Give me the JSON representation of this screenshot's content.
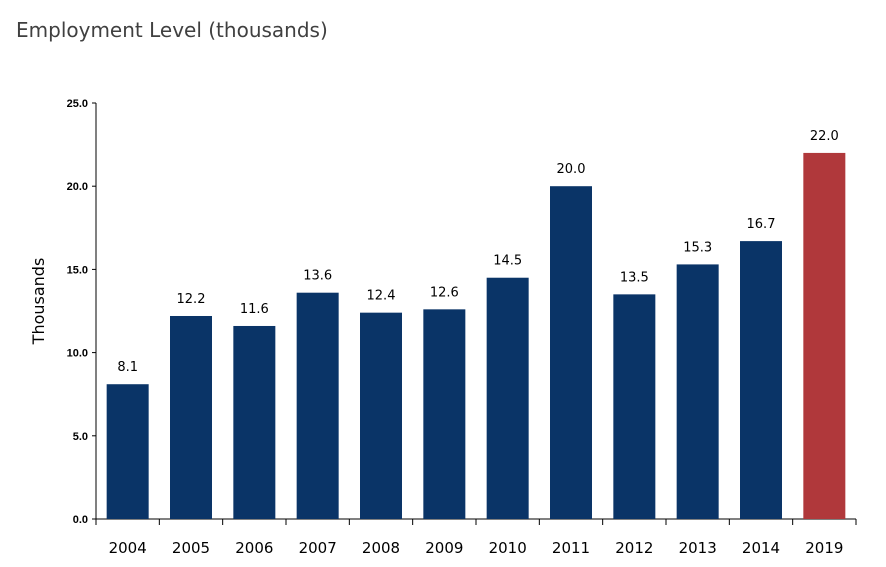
{
  "chart_data": {
    "type": "bar",
    "title": "Employment Level (thousands)",
    "ylabel": "Thousands",
    "xlabel": "",
    "categories": [
      "2004",
      "2005",
      "2006",
      "2007",
      "2008",
      "2009",
      "2010",
      "2011",
      "2012",
      "2013",
      "2014",
      "2019"
    ],
    "values": [
      8.1,
      12.2,
      11.6,
      13.6,
      12.4,
      12.6,
      14.5,
      20.0,
      13.5,
      15.3,
      16.7,
      22.0
    ],
    "data_labels": [
      "8.1",
      "12.2",
      "11.6",
      "13.6",
      "12.4",
      "12.6",
      "14.5",
      "20.0",
      "13.5",
      "15.3",
      "16.7",
      "22.0"
    ],
    "ylim": [
      0,
      25
    ],
    "yticks": [
      0,
      5,
      10,
      15,
      20,
      25
    ],
    "ytick_labels": [
      "0.0",
      "5.0",
      "10.0",
      "15.0",
      "20.0",
      "25.0"
    ],
    "grid": false,
    "legend": "none",
    "colors": {
      "default": "#0a3467",
      "highlight": "#b0383b"
    },
    "highlight_index": 11
  }
}
